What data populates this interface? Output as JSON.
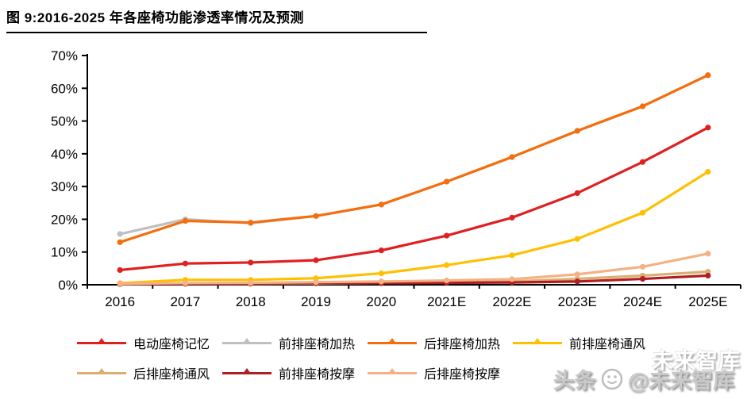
{
  "figure": {
    "title": "图 9:2016-2025 年各座椅功能渗透率情况及预测"
  },
  "chart_data": {
    "type": "line",
    "title": "2016-2025 年各座椅功能渗透率情况及预测",
    "categories": [
      "2016",
      "2017",
      "2018",
      "2019",
      "2020",
      "2021E",
      "2022E",
      "2023E",
      "2024E",
      "2025E"
    ],
    "series": [
      {
        "name": "前排座椅加热",
        "color": "#bfbfbf",
        "values": [
          15.5,
          20.0,
          18.8,
          21.0,
          24.5,
          31.5,
          39.0,
          47.0,
          54.5,
          64.0
        ]
      },
      {
        "name": "后排座椅加热",
        "color": "#f56e0d",
        "values": [
          13.0,
          19.5,
          19.0,
          21.0,
          24.5,
          31.5,
          39.0,
          47.0,
          54.5,
          64.0
        ]
      },
      {
        "name": "电动座椅记忆",
        "color": "#e02020",
        "values": [
          4.5,
          6.5,
          6.8,
          7.5,
          10.5,
          15.0,
          20.5,
          28.0,
          37.5,
          48.0
        ]
      },
      {
        "name": "前排座椅通风",
        "color": "#ffc000",
        "values": [
          0.5,
          1.5,
          1.5,
          2.0,
          3.5,
          6.0,
          9.0,
          14.0,
          22.0,
          34.5
        ]
      },
      {
        "name": "后排座椅通风",
        "color": "#dbae72",
        "values": [
          0.2,
          0.3,
          0.3,
          0.4,
          0.5,
          0.7,
          1.0,
          1.8,
          2.8,
          4.0
        ]
      },
      {
        "name": "前排座椅按摩",
        "color": "#af1e23",
        "values": [
          0.2,
          0.3,
          0.4,
          0.5,
          0.5,
          0.6,
          0.7,
          1.0,
          1.8,
          2.8
        ]
      },
      {
        "name": "后排座椅按摩",
        "color": "#f4b183",
        "values": [
          0.3,
          0.5,
          0.6,
          0.8,
          1.0,
          1.3,
          1.7,
          3.2,
          5.5,
          9.5
        ]
      }
    ],
    "legend_order": [
      "电动座椅记忆",
      "前排座椅加热",
      "后排座椅加热",
      "前排座椅通风",
      "后排座椅通风",
      "前排座椅按摩",
      "后排座椅按摩"
    ],
    "xlabel": "",
    "ylabel": "",
    "ylim": [
      0,
      70
    ],
    "ytick_step": 10,
    "ytick_labels": [
      "0%",
      "10%",
      "20%",
      "30%",
      "40%",
      "50%",
      "60%",
      "70%"
    ],
    "grid": false,
    "legend_position": "bottom",
    "axis_color": "#000000"
  },
  "watermark": {
    "prefix": "头条",
    "handle": "@未来智库",
    "ghost": "未来智库"
  }
}
